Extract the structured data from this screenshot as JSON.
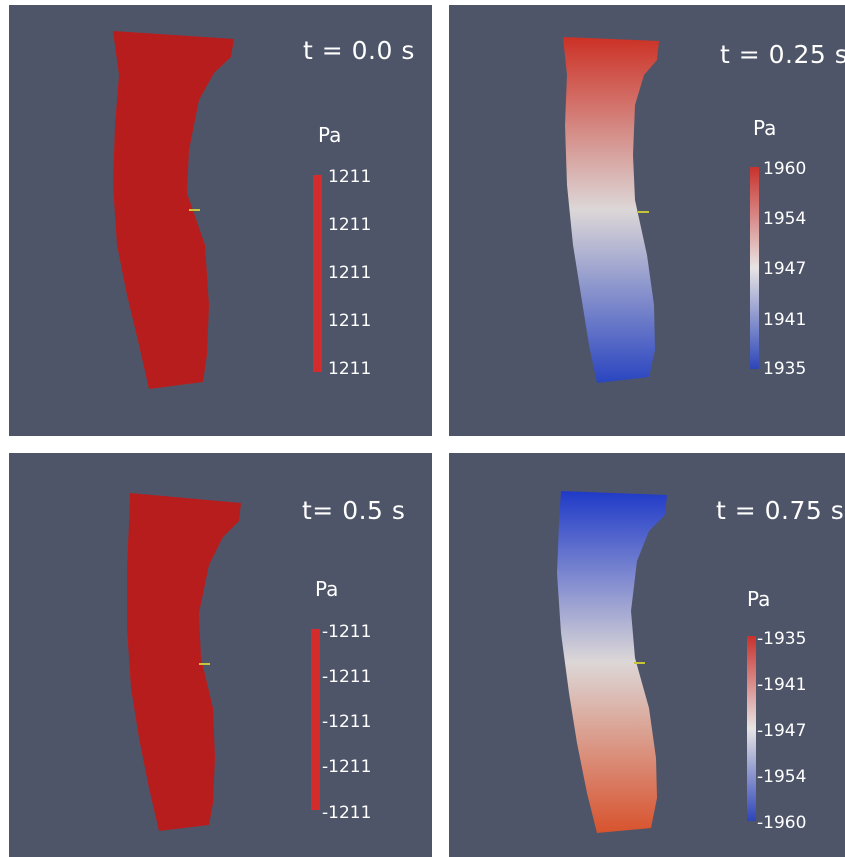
{
  "panels": [
    {
      "time_label": "t = 0.0 s",
      "unit": "Pa",
      "colorbar": {
        "top_color": "#d42b2b",
        "mid_color": "#d42b2b",
        "bottom_color": "#d42b2b"
      },
      "ticks": [
        "1211",
        "1211",
        "1211",
        "1211",
        "1211"
      ],
      "vessel_colors": {
        "top": "#b81d1d",
        "mid": "#b81d1d",
        "bottom": "#b81d1d"
      }
    },
    {
      "time_label": "t = 0.25 s",
      "unit": "Pa",
      "colorbar": {
        "top_color": "#c8312c",
        "mid_color": "#e8e4e4",
        "bottom_color": "#2d46b8"
      },
      "ticks": [
        "1960",
        "1954",
        "1947",
        "1941",
        "1935"
      ],
      "vessel_colors": {
        "top": "#cc3125",
        "mid": "#dcd7d7",
        "bottom": "#2a45c0"
      }
    },
    {
      "time_label": "t= 0.5 s",
      "unit": "Pa",
      "colorbar": {
        "top_color": "#d42b2b",
        "mid_color": "#d42b2b",
        "bottom_color": "#d42b2b"
      },
      "ticks": [
        "-1211",
        "-1211",
        "-1211",
        "-1211",
        "-1211"
      ],
      "vessel_colors": {
        "top": "#b81d1d",
        "mid": "#b81d1d",
        "bottom": "#b81d1d"
      }
    },
    {
      "time_label": "t = 0.75 s",
      "unit": "Pa",
      "colorbar": {
        "top_color": "#c8312c",
        "mid_color": "#e8e4e4",
        "bottom_color": "#2d46b8"
      },
      "ticks": [
        "-1935",
        "-1941",
        "-1947",
        "-1954",
        "-1960"
      ],
      "vessel_colors": {
        "top": "#1f3ac8",
        "mid": "#dcd7d7",
        "bottom": "#d8532e"
      }
    }
  ]
}
